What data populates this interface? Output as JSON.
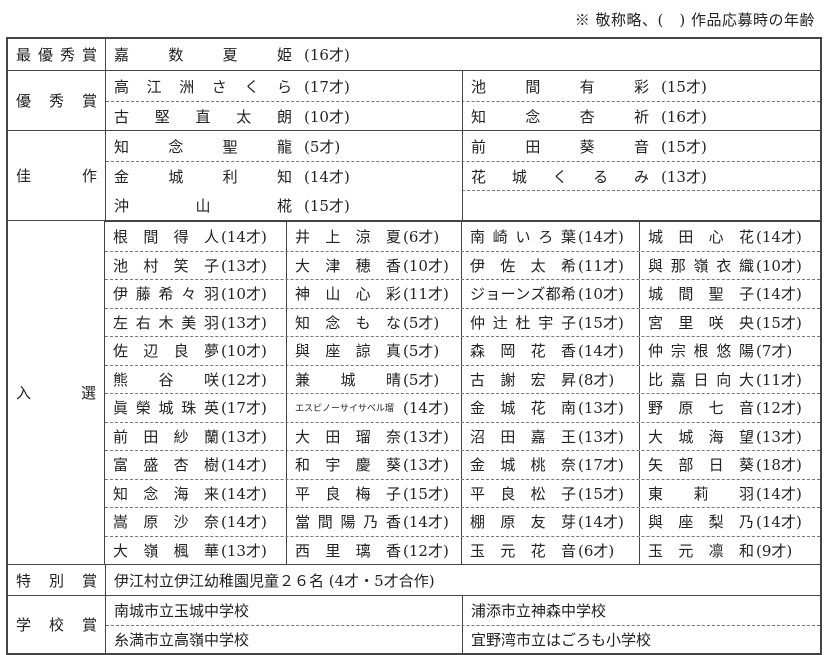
{
  "note": "※ 敬称略、(　) 作品応募時の年齢",
  "grand_prize": {
    "label": "最優秀賞",
    "winners": [
      {
        "name": "嘉数夏姫",
        "age": "(16才)"
      }
    ]
  },
  "excellence": {
    "label": "優秀賞",
    "winners": [
      {
        "name": "高江洲さくら",
        "age": "(17才)"
      },
      {
        "name": "池間有彩",
        "age": "(15才)"
      },
      {
        "name": "古堅直太朗",
        "age": "(10才)"
      },
      {
        "name": "知念杏祈",
        "age": "(16才)"
      }
    ]
  },
  "honorable": {
    "label": "佳　　作",
    "winners": [
      {
        "name": "知念聖龍",
        "age": "(5才)"
      },
      {
        "name": "前田葵音",
        "age": "(15才)"
      },
      {
        "name": "金城利知",
        "age": "(14才)"
      },
      {
        "name": "花城くるみ",
        "age": "(13才)"
      },
      {
        "name": "沖山椛",
        "age": "(15才)"
      }
    ]
  },
  "selected": {
    "label": "入　選",
    "rows": [
      [
        {
          "name": "根間得人",
          "age": "(14才)"
        },
        {
          "name": "井上涼夏",
          "age": "(6才)"
        },
        {
          "name": "南崎いろ葉",
          "age": "(14才)"
        },
        {
          "name": "城田心花",
          "age": "(14才)"
        }
      ],
      [
        {
          "name": "池村笑子",
          "age": "(13才)"
        },
        {
          "name": "大津穂香",
          "age": "(10才)"
        },
        {
          "name": "伊佐太希",
          "age": "(11才)"
        },
        {
          "name": "與那嶺衣織",
          "age": "(10才)"
        }
      ],
      [
        {
          "name": "伊藤希々羽",
          "age": "(10才)"
        },
        {
          "name": "神山心彩",
          "age": "(11才)"
        },
        {
          "name": "ジョーンズ都希",
          "age": "(10才)"
        },
        {
          "name": "城間聖子",
          "age": "(14才)"
        }
      ],
      [
        {
          "name": "左右木美羽",
          "age": "(13才)"
        },
        {
          "name": "知念もな",
          "age": "(5才)"
        },
        {
          "name": "仲辻杜宇子",
          "age": "(15才)"
        },
        {
          "name": "宮里咲央",
          "age": "(15才)"
        }
      ],
      [
        {
          "name": "佐辺良夢",
          "age": "(10才)"
        },
        {
          "name": "與座諒真",
          "age": "(5才)"
        },
        {
          "name": "森岡花香",
          "age": "(14才)"
        },
        {
          "name": "仲宗根悠陽",
          "age": "(7才)"
        }
      ],
      [
        {
          "name": "熊谷咲",
          "age": "(12才)"
        },
        {
          "name": "兼城晴",
          "age": "(5才)"
        },
        {
          "name": "古謝宏昇",
          "age": "(8才)"
        },
        {
          "name": "比嘉日向大",
          "age": "(11才)"
        }
      ],
      [
        {
          "name": "眞榮城珠英",
          "age": "(17才)"
        },
        {
          "name": "エスピノーサイサベル瑠",
          "age": "(14才)"
        },
        {
          "name": "金城花南",
          "age": "(13才)"
        },
        {
          "name": "野原七音",
          "age": "(12才)"
        }
      ],
      [
        {
          "name": "前田紗蘭",
          "age": "(13才)"
        },
        {
          "name": "大田瑠奈",
          "age": "(13才)"
        },
        {
          "name": "沼田嘉王",
          "age": "(13才)"
        },
        {
          "name": "大城海望",
          "age": "(13才)"
        }
      ],
      [
        {
          "name": "富盛杏樹",
          "age": "(14才)"
        },
        {
          "name": "和宇慶葵",
          "age": "(13才)"
        },
        {
          "name": "金城桃奈",
          "age": "(17才)"
        },
        {
          "name": "矢部日葵",
          "age": "(18才)"
        }
      ],
      [
        {
          "name": "知念海来",
          "age": "(14才)"
        },
        {
          "name": "平良梅子",
          "age": "(15才)"
        },
        {
          "name": "平良松子",
          "age": "(15才)"
        },
        {
          "name": "東莉羽",
          "age": "(14才)"
        }
      ],
      [
        {
          "name": "嵩原沙奈",
          "age": "(14才)"
        },
        {
          "name": "當間陽乃香",
          "age": "(14才)"
        },
        {
          "name": "棚原友芽",
          "age": "(14才)"
        },
        {
          "name": "與座梨乃",
          "age": "(14才)"
        }
      ],
      [
        {
          "name": "大嶺楓華",
          "age": "(13才)"
        },
        {
          "name": "西里璃香",
          "age": "(12才)"
        },
        {
          "name": "玉元花音",
          "age": "(6才)"
        },
        {
          "name": "玉元凛和",
          "age": "(9才)"
        }
      ]
    ]
  },
  "special": {
    "label": "特別賞",
    "text": "伊江村立伊江幼稚園児童２６名 (4才・5才合作)"
  },
  "school": {
    "label": "学校賞",
    "schools": [
      "南城市立玉城中学校",
      "浦添市立神森中学校",
      "糸満市立高嶺中学校",
      "宜野湾市立はごろも小学校"
    ]
  }
}
